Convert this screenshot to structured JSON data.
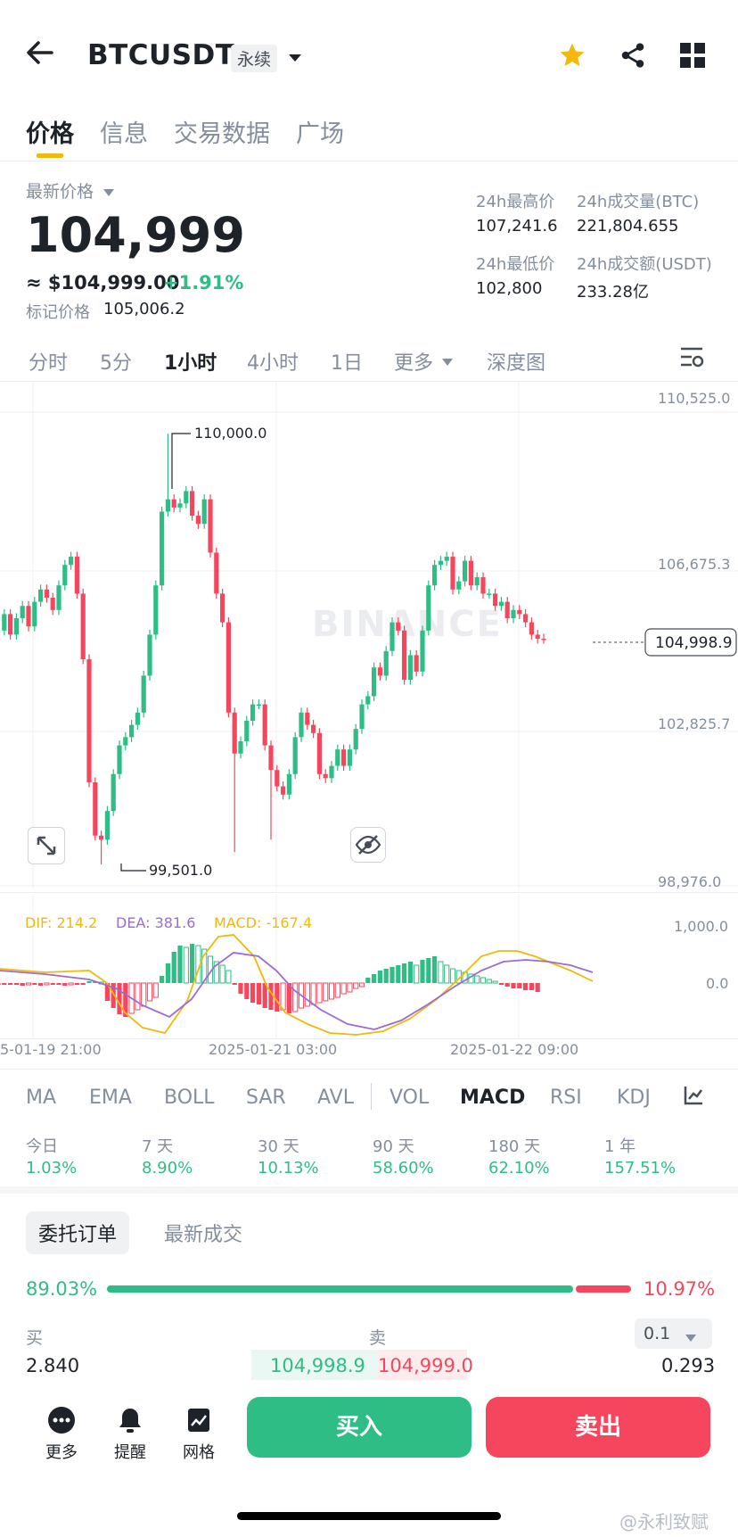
{
  "header": {
    "symbol": "BTCUSDT",
    "badge": "永续"
  },
  "tabs": [
    {
      "label": "价格"
    },
    {
      "label": "信息"
    },
    {
      "label": "交易数据"
    },
    {
      "label": "广场"
    }
  ],
  "price": {
    "label": "最新价格",
    "last": "104,999",
    "usd": "≈ $104,999.00",
    "change": "+1.91%",
    "mark_label": "标记价格",
    "mark_value": "105,006.2"
  },
  "stats": {
    "high_label": "24h最高价",
    "high_value": "107,241.6",
    "vol_btc_label": "24h成交量(BTC)",
    "vol_btc_value": "221,804.655",
    "low_label": "24h最低价",
    "low_value": "102,800",
    "vol_usdt_label": "24h成交额(USDT)",
    "vol_usdt_value": "233.28亿"
  },
  "timeframes": [
    {
      "label": "分时"
    },
    {
      "label": "5分"
    },
    {
      "label": "1小时"
    },
    {
      "label": "4小时"
    },
    {
      "label": "1日"
    },
    {
      "label": "更多"
    },
    {
      "label": "深度图"
    }
  ],
  "chart": {
    "price_axis": [
      "110,525.0",
      "106,675.3",
      "102,825.7",
      "98,976.0"
    ],
    "current_price": "104,998.9",
    "high_marker": "110,000.0",
    "low_marker": "99,501.0",
    "watermark": "BINANCE",
    "macd_labels": {
      "dif": "DIF: 214.2",
      "dea": "DEA: 381.6",
      "macd": "MACD: -167.4"
    },
    "macd_axis": [
      "1,000.0",
      "0.0"
    ],
    "time_axis": [
      "5-01-19 21:00",
      "2025-01-21 03:00",
      "2025-01-22 09:00"
    ]
  },
  "indicators": [
    {
      "label": "MA"
    },
    {
      "label": "EMA"
    },
    {
      "label": "BOLL"
    },
    {
      "label": "SAR"
    },
    {
      "label": "AVL"
    },
    {
      "label": "VOL"
    },
    {
      "label": "MACD"
    },
    {
      "label": "RSI"
    },
    {
      "label": "KDJ"
    }
  ],
  "performance": [
    {
      "period": "今日",
      "value": "1.03%"
    },
    {
      "period": "7 天",
      "value": "8.90%"
    },
    {
      "period": "30 天",
      "value": "10.13%"
    },
    {
      "period": "90 天",
      "value": "58.60%"
    },
    {
      "period": "180 天",
      "value": "62.10%"
    },
    {
      "period": "1 年",
      "value": "157.51%"
    }
  ],
  "orderbook": {
    "tab_orders": "委托订单",
    "tab_trades": "最新成交",
    "buy_pct": "89.03%",
    "sell_pct": "10.97%",
    "buy_ratio": 0.8903,
    "buy_label": "买",
    "sell_label": "卖",
    "precision": "0.1",
    "buy_qty": "2.840",
    "bid": "104,998.9",
    "ask": "104,999.0",
    "sell_qty": "0.293"
  },
  "bottom": {
    "more": "更多",
    "alert": "提醒",
    "grid": "网格",
    "buy": "买入",
    "sell": "卖出"
  },
  "watermark_text": "@永利致赋",
  "colors": {
    "up": "#2ebd85",
    "down": "#f6465d",
    "accent": "#f0b90b",
    "dif": "#f0b90b",
    "dea": "#9b6bd3"
  }
}
